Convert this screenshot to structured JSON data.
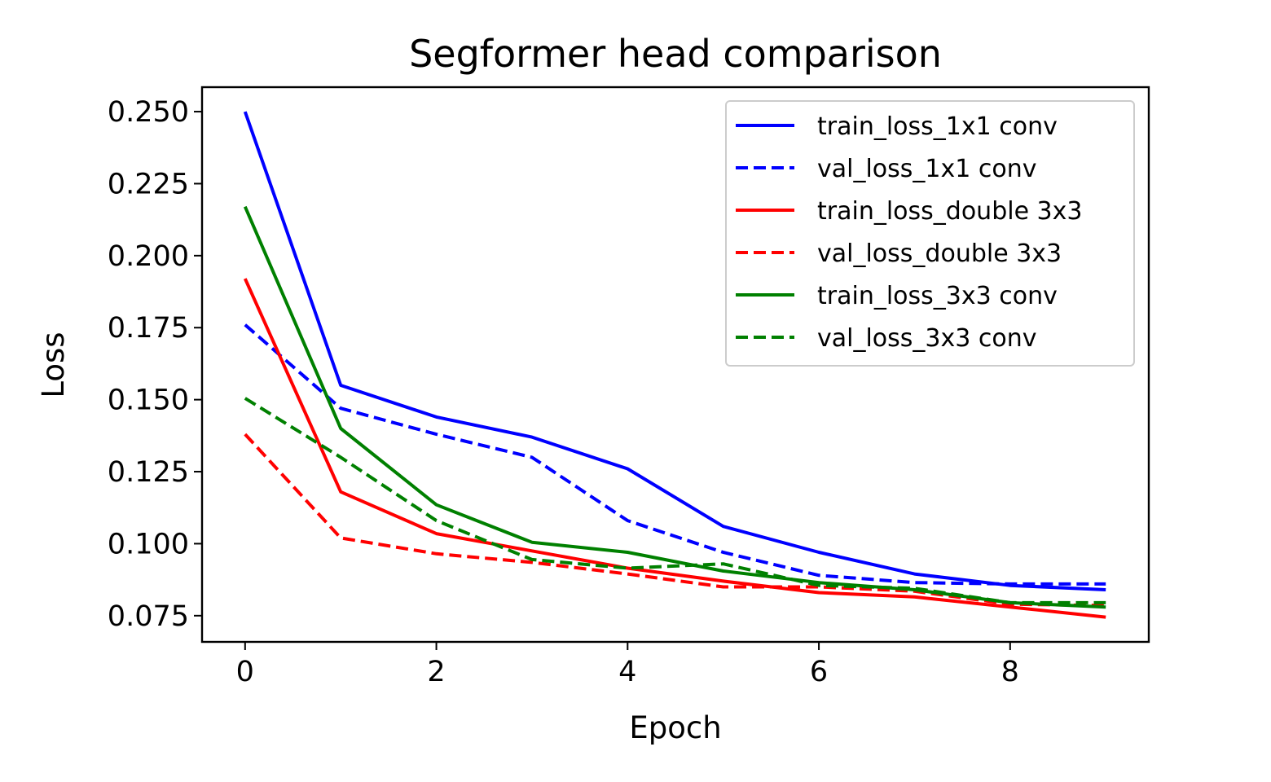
{
  "chart_data": {
    "type": "line",
    "title": "Segformer head comparison",
    "xlabel": "Epoch",
    "ylabel": "Loss",
    "xlim": [
      -0.45,
      9.45
    ],
    "ylim": [
      0.0659,
      0.2585
    ],
    "xticks": [
      0,
      2,
      4,
      6,
      8
    ],
    "xtick_labels": [
      "0",
      "2",
      "4",
      "6",
      "8"
    ],
    "yticks": [
      0.075,
      0.1,
      0.125,
      0.15,
      0.175,
      0.2,
      0.225,
      0.25
    ],
    "ytick_labels": [
      "0.075",
      "0.100",
      "0.125",
      "0.150",
      "0.175",
      "0.200",
      "0.225",
      "0.250"
    ],
    "legend_position": "top-right",
    "grid": false,
    "x": [
      0,
      1,
      2,
      3,
      4,
      5,
      6,
      7,
      8,
      9
    ],
    "series": [
      {
        "name": "train_loss_1x1 conv",
        "color": "#0000ff",
        "style": "solid",
        "values": [
          0.25,
          0.155,
          0.144,
          0.137,
          0.126,
          0.106,
          0.097,
          0.0895,
          0.0855,
          0.084
        ]
      },
      {
        "name": "val_loss_1x1 conv",
        "color": "#0000ff",
        "style": "dashed",
        "values": [
          0.176,
          0.147,
          0.138,
          0.13,
          0.108,
          0.097,
          0.089,
          0.0865,
          0.086,
          0.086
        ]
      },
      {
        "name": "train_loss_double 3x3",
        "color": "#ff0000",
        "style": "solid",
        "values": [
          0.192,
          0.118,
          0.1035,
          0.0975,
          0.0915,
          0.087,
          0.083,
          0.0815,
          0.078,
          0.0745
        ]
      },
      {
        "name": "val_loss_double 3x3",
        "color": "#ff0000",
        "style": "dashed",
        "values": [
          0.138,
          0.102,
          0.0965,
          0.0935,
          0.0895,
          0.085,
          0.085,
          0.0835,
          0.079,
          0.0785
        ]
      },
      {
        "name": "train_loss_3x3 conv",
        "color": "#008000",
        "style": "solid",
        "values": [
          0.217,
          0.14,
          0.1135,
          0.1005,
          0.097,
          0.0905,
          0.0865,
          0.084,
          0.0795,
          0.078
        ]
      },
      {
        "name": "val_loss_3x3 conv",
        "color": "#008000",
        "style": "dashed",
        "values": [
          0.1505,
          0.13,
          0.108,
          0.0945,
          0.0915,
          0.093,
          0.0855,
          0.0845,
          0.0795,
          0.0795
        ]
      }
    ]
  }
}
